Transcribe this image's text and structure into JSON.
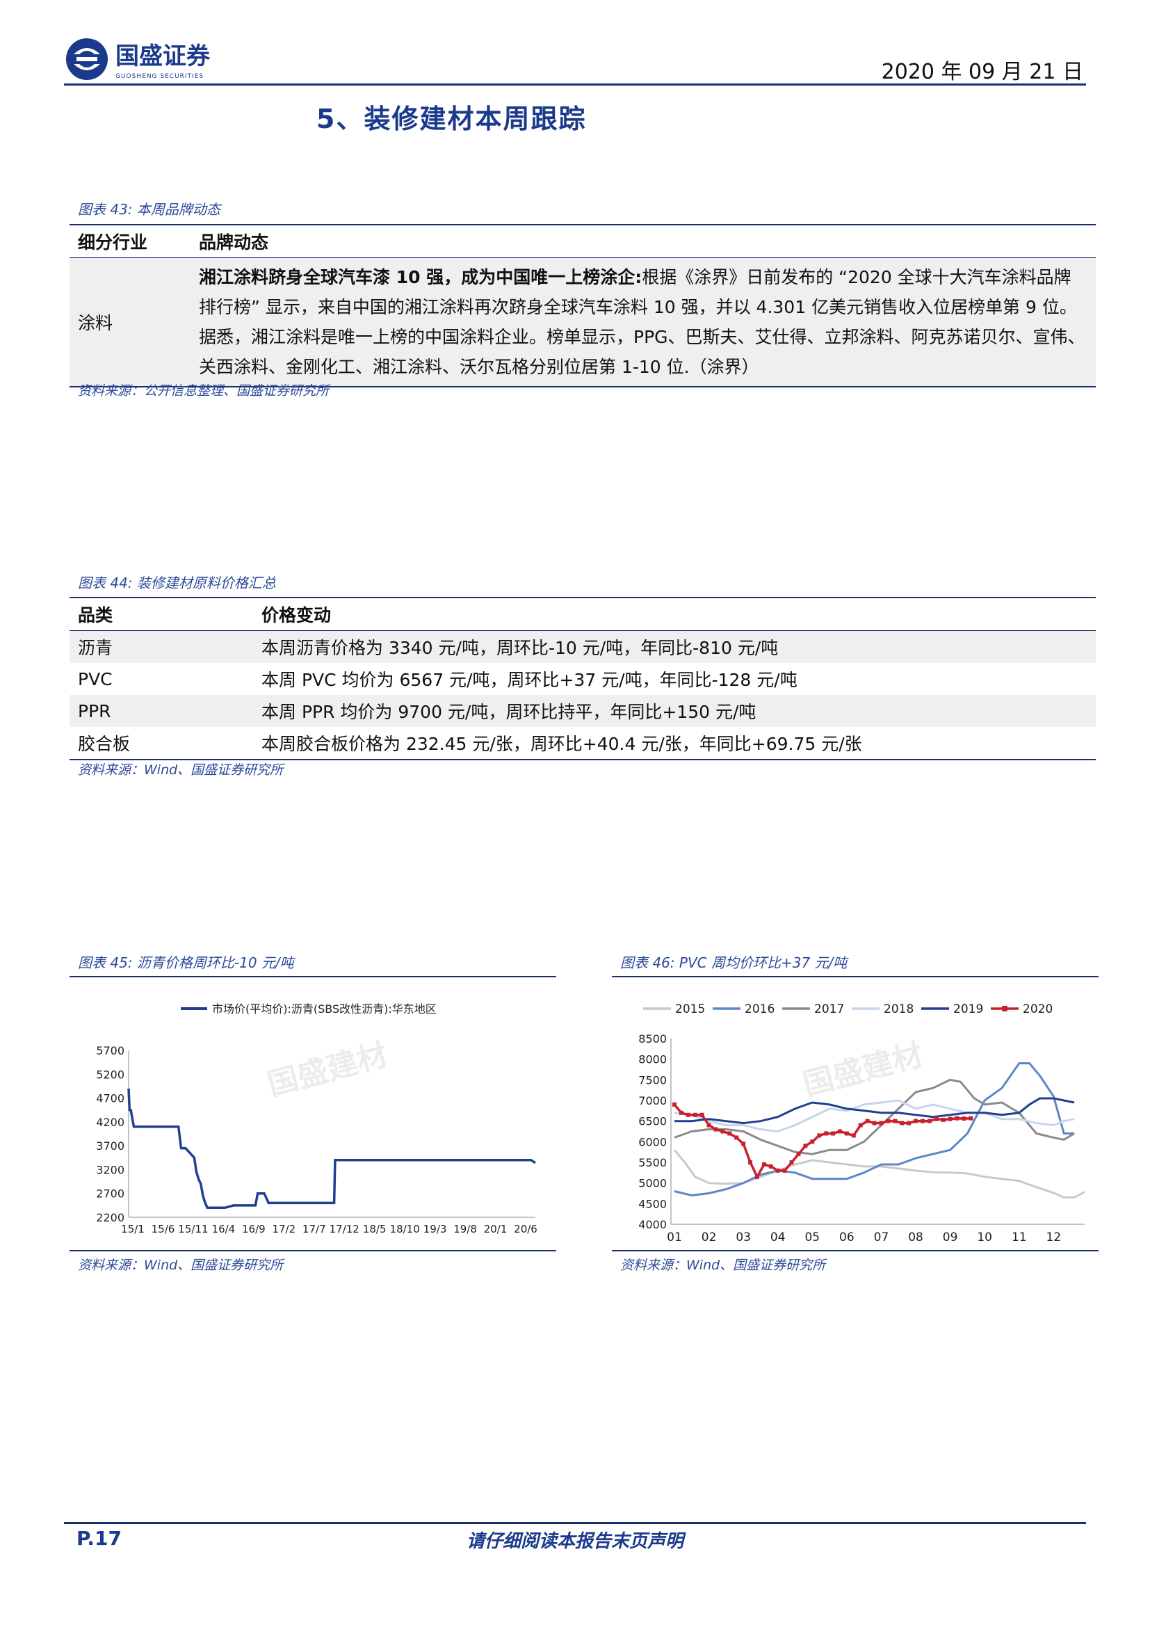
{
  "header": {
    "brand_cn": "国盛证券",
    "brand_en": "GUOSHENG SECURITIES",
    "date": "2020 年 09 月 21 日"
  },
  "section_title": "5、装修建材本周跟踪",
  "fig43": {
    "caption": "图表 43:  本周品牌动态",
    "headers": [
      "细分行业",
      "品牌动态"
    ],
    "row_category": "涂料",
    "row_bold": "湘江涂料跻身全球汽车漆 10 强，成为中国唯一上榜涂企:",
    "row_text": "根据《涂界》日前发布的 “2020 全球十大汽车涂料品牌排行榜” 显示，来自中国的湘江涂料再次跻身全球汽车涂料 10 强，并以 4.301 亿美元销售收入位居榜单第 9 位。据悉，湘江涂料是唯一上榜的中国涂料企业。榜单显示，PPG、巴斯夫、艾仕得、立邦涂料、阿克苏诺贝尔、宣伟、关西涂料、金刚化工、湘江涂料、沃尔瓦格分别位居第 1-10 位.（涂界）",
    "source": "资料来源：公开信息整理、国盛证券研究所"
  },
  "fig44": {
    "caption": "图表 44:  装修建材原料价格汇总",
    "headers": [
      "品类",
      "价格变动"
    ],
    "rows": [
      {
        "category": "沥青",
        "change": "本周沥青价格为 3340 元/吨，周环比-10 元/吨，年同比-810 元/吨"
      },
      {
        "category": "PVC",
        "change": "本周 PVC 均价为 6567 元/吨，周环比+37 元/吨，年同比-128 元/吨"
      },
      {
        "category": "PPR",
        "change": "本周 PPR 均价为 9700 元/吨，周环比持平，年同比+150 元/吨"
      },
      {
        "category": "胶合板",
        "change": "本周胶合板价格为 232.45 元/张，周环比+40.4 元/张，年同比+69.75 元/张"
      }
    ],
    "source": "资料来源：Wind、国盛证券研究所"
  },
  "fig45": {
    "caption": "图表 45:  沥青价格周环比-10 元/吨",
    "source": "资料来源：Wind、国盛证券研究所",
    "watermark": "国盛建材"
  },
  "fig46": {
    "caption": "图表 46:  PVC 周均价环比+37 元/吨",
    "source": "资料来源：Wind、国盛证券研究所",
    "watermark": "国盛建材"
  },
  "footer": {
    "page": "P.17",
    "note": "请仔细阅读本报告末页声明"
  },
  "chart_data": [
    {
      "type": "line",
      "legend": "市场价(平均价):沥青(SBS改性沥青):华东地区",
      "legend_position": "top",
      "color": "#1f3f8f",
      "ylim": [
        2200,
        5700
      ],
      "yticks": [
        5700,
        5200,
        4700,
        4200,
        3700,
        3200,
        2700,
        2200
      ],
      "xticks": [
        "15/1",
        "15/6",
        "15/11",
        "16/4",
        "16/9",
        "17/2",
        "17/7",
        "17/12",
        "18/5",
        "18/10",
        "19/3",
        "19/8",
        "20/1",
        "20/6"
      ],
      "x": [
        0,
        0.2,
        0.5,
        1.2,
        3,
        5,
        7,
        8,
        8.5,
        9,
        9.5,
        10,
        10.3,
        10.7,
        11,
        11.4,
        12,
        13,
        15,
        15.5,
        16,
        16.5,
        17,
        17.5,
        18,
        20,
        22,
        24,
        26,
        29,
        29.5,
        31,
        32,
        35,
        40,
        45,
        47,
        47.2,
        49,
        50,
        51,
        52,
        53,
        55,
        57,
        58,
        59,
        60,
        60.7,
        61,
        61.5,
        62,
        63,
        63.5,
        64,
        65,
        67,
        68,
        70,
        72,
        73,
        75,
        78,
        79,
        80,
        82,
        82.5,
        83,
        84,
        84.5,
        85,
        85.5,
        86,
        86.3,
        87,
        88,
        89,
        90,
        92,
        93
      ],
      "y": [
        4900,
        4450,
        4450,
        4100,
        4100,
        4100,
        4100,
        4100,
        4100,
        4100,
        4100,
        4100,
        4100,
        4100,
        4100,
        4100,
        3650,
        3650,
        3450,
        3150,
        3000,
        2900,
        2650,
        2500,
        2400,
        2400,
        2400,
        2450,
        2450,
        2450,
        2700,
        2700,
        2500,
        2500,
        2500,
        2500,
        2500,
        3400,
        3400,
        3400,
        3400,
        3400,
        3400,
        3400,
        3400,
        3400,
        3400,
        3400,
        3400,
        3400,
        3400,
        3400,
        3400,
        3400,
        3400,
        3400,
        3400,
        3400,
        3400,
        3400,
        3400,
        3400,
        3400,
        3400,
        3400,
        3400,
        3400,
        3400,
        3400,
        3400,
        3400,
        3400,
        3400,
        3400,
        3400,
        3400,
        3400,
        3400,
        3400,
        3340
      ]
    },
    {
      "type": "line",
      "legend_position": "top",
      "ylim": [
        4000,
        8500
      ],
      "yticks": [
        8500,
        8000,
        7500,
        7000,
        6500,
        6000,
        5500,
        5000,
        4500,
        4000
      ],
      "xticks": [
        "01",
        "02",
        "03",
        "04",
        "05",
        "06",
        "07",
        "08",
        "09",
        "10",
        "11",
        "12"
      ],
      "series": [
        {
          "name": "2015",
          "color": "#c9c9c9",
          "x": [
            1,
            1.3,
            1.6,
            2,
            2.5,
            3,
            3.5,
            4,
            4.5,
            5,
            5.5,
            6,
            6.5,
            7,
            7.5,
            8,
            8.5,
            9,
            9.5,
            10,
            10.5,
            11,
            11.5,
            12,
            12.3,
            12.6,
            12.9
          ],
          "y": [
            5800,
            5500,
            5150,
            5000,
            4980,
            5000,
            5150,
            5300,
            5450,
            5550,
            5500,
            5450,
            5400,
            5400,
            5350,
            5300,
            5260,
            5250,
            5230,
            5150,
            5100,
            5050,
            4900,
            4760,
            4650,
            4650,
            4780
          ]
        },
        {
          "name": "2016",
          "color": "#5b86c9",
          "x": [
            1,
            1.5,
            2,
            2.5,
            3,
            3.5,
            4,
            4.5,
            5,
            5.5,
            6,
            6.5,
            7,
            7.5,
            8,
            8.5,
            9,
            9.5,
            10,
            10.5,
            11,
            11.3,
            11.6,
            12,
            12.3,
            12.6
          ],
          "y": [
            4800,
            4700,
            4750,
            4850,
            5000,
            5200,
            5300,
            5250,
            5100,
            5100,
            5100,
            5250,
            5450,
            5450,
            5600,
            5700,
            5800,
            6200,
            7000,
            7300,
            7900,
            7900,
            7600,
            7100,
            6200,
            6200
          ]
        },
        {
          "name": "2017",
          "color": "#8a8a8a",
          "x": [
            1,
            1.5,
            2,
            2.5,
            3,
            3.5,
            4,
            4.5,
            5,
            5.5,
            6,
            6.5,
            7,
            7.5,
            8,
            8.5,
            9,
            9.3,
            9.7,
            10,
            10.5,
            11,
            11.5,
            12,
            12.3,
            12.6
          ],
          "y": [
            6100,
            6250,
            6300,
            6300,
            6250,
            6050,
            5900,
            5750,
            5700,
            5800,
            5800,
            6000,
            6400,
            6800,
            7200,
            7300,
            7500,
            7450,
            7050,
            6900,
            6950,
            6700,
            6200,
            6100,
            6050,
            6200
          ]
        },
        {
          "name": "2018",
          "color": "#c6d5ec",
          "x": [
            1,
            1.5,
            2,
            2.5,
            3,
            3.5,
            4,
            4.5,
            5,
            5.5,
            6,
            6.5,
            7,
            7.5,
            8,
            8.5,
            9,
            9.5,
            10,
            10.5,
            11,
            11.5,
            12,
            12.3,
            12.6
          ],
          "y": [
            6700,
            6650,
            6500,
            6400,
            6400,
            6300,
            6250,
            6400,
            6600,
            6800,
            6750,
            6900,
            6950,
            7000,
            6800,
            6900,
            6800,
            6700,
            6700,
            6550,
            6550,
            6450,
            6400,
            6500,
            6550
          ]
        },
        {
          "name": "2019",
          "color": "#1f3f8f",
          "x": [
            1,
            1.5,
            2,
            2.5,
            3,
            3.5,
            4,
            4.5,
            5,
            5.5,
            6,
            6.5,
            7,
            7.5,
            8,
            8.5,
            9,
            9.5,
            10,
            10.5,
            11,
            11.3,
            11.6,
            12,
            12.3,
            12.6
          ],
          "y": [
            6500,
            6500,
            6550,
            6500,
            6450,
            6500,
            6600,
            6800,
            6950,
            6900,
            6800,
            6750,
            6700,
            6700,
            6650,
            6600,
            6650,
            6700,
            6700,
            6650,
            6700,
            6900,
            7050,
            7050,
            7000,
            6950
          ]
        },
        {
          "name": "2020",
          "color": "#c8202c",
          "x": [
            1,
            1.2,
            1.4,
            1.6,
            1.8,
            2,
            2.2,
            2.4,
            2.6,
            2.8,
            3,
            3.2,
            3.4,
            3.6,
            3.8,
            4,
            4.2,
            4.4,
            4.6,
            4.8,
            5,
            5.2,
            5.4,
            5.6,
            5.8,
            6,
            6.2,
            6.4,
            6.6,
            6.8,
            7,
            7.2,
            7.4,
            7.6,
            7.8,
            8,
            8.2,
            8.4,
            8.6,
            8.8,
            9,
            9.2,
            9.4,
            9.6
          ],
          "y": [
            6900,
            6700,
            6650,
            6650,
            6650,
            6400,
            6300,
            6250,
            6200,
            6100,
            5950,
            5500,
            5150,
            5450,
            5400,
            5300,
            5300,
            5500,
            5700,
            5900,
            6000,
            6150,
            6200,
            6200,
            6250,
            6200,
            6150,
            6400,
            6500,
            6450,
            6450,
            6500,
            6500,
            6450,
            6450,
            6500,
            6500,
            6500,
            6550,
            6530,
            6550,
            6567,
            6560,
            6567
          ]
        }
      ]
    }
  ]
}
